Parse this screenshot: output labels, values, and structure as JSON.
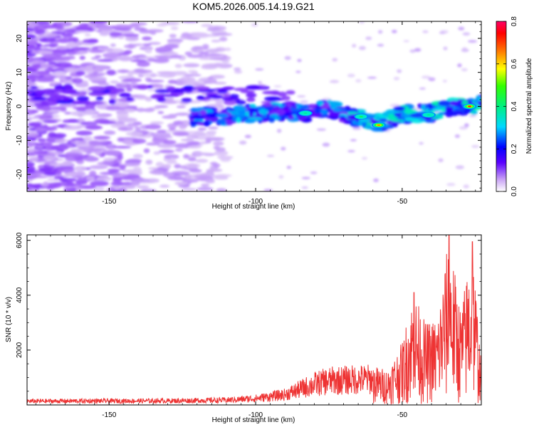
{
  "title": "KOM5.2026.005.14.19.G21",
  "chart_data": [
    {
      "type": "heatmap",
      "title": "KOM5.2026.005.14.19.G21",
      "xlabel": "Height of straight line (km)",
      "ylabel": "Frequency (Hz)",
      "xlim": [
        -178,
        -23
      ],
      "ylim": [
        -25,
        25
      ],
      "xticks": [
        -150,
        -100,
        -50
      ],
      "yticks": [
        -20,
        -10,
        0,
        10,
        20
      ],
      "colorbar": {
        "label": "Normalized spectral amplitude",
        "range": [
          0.0,
          0.8
        ],
        "ticks": [
          "0.0",
          "0.2",
          "0.4",
          "0.6",
          "0.8"
        ]
      },
      "ridge": [
        {
          "x": -122,
          "y": -3
        },
        {
          "x": -110,
          "y": -3
        },
        {
          "x": -100,
          "y": -2
        },
        {
          "x": -90,
          "y": -1.5
        },
        {
          "x": -82,
          "y": -2
        },
        {
          "x": -75,
          "y": -0.5
        },
        {
          "x": -68,
          "y": -2.5
        },
        {
          "x": -62,
          "y": -4
        },
        {
          "x": -57,
          "y": -5
        },
        {
          "x": -52,
          "y": -3
        },
        {
          "x": -47,
          "y": -2
        },
        {
          "x": -40,
          "y": -2
        },
        {
          "x": -33,
          "y": 0
        },
        {
          "x": -27,
          "y": 0
        },
        {
          "x": -23,
          "y": 0.5
        }
      ],
      "peaks": [
        {
          "x": -83,
          "y": -2,
          "amplitude": 0.5
        },
        {
          "x": -64,
          "y": -3,
          "amplitude": 0.55
        },
        {
          "x": -58,
          "y": -5.5,
          "amplitude": 0.75
        },
        {
          "x": -41,
          "y": -2.5,
          "amplitude": 0.5
        },
        {
          "x": -27,
          "y": 0,
          "amplitude": 0.8
        }
      ]
    },
    {
      "type": "line",
      "xlabel": "Height of straight line (km)",
      "ylabel": "SNR (10 * v/v)",
      "xlim": [
        -178,
        -23
      ],
      "ylim": [
        0,
        6200
      ],
      "xticks": [
        -150,
        -100,
        -50
      ],
      "yticks": [
        2000,
        4000,
        6000
      ],
      "color": "#ee3333",
      "envelope": [
        {
          "x": -178,
          "y": 220
        },
        {
          "x": -130,
          "y": 240
        },
        {
          "x": -110,
          "y": 280
        },
        {
          "x": -100,
          "y": 380
        },
        {
          "x": -90,
          "y": 600
        },
        {
          "x": -80,
          "y": 1200
        },
        {
          "x": -75,
          "y": 1400
        },
        {
          "x": -62,
          "y": 1500
        },
        {
          "x": -55,
          "y": 1300
        },
        {
          "x": -50,
          "y": 2300
        },
        {
          "x": -48,
          "y": 3300
        },
        {
          "x": -46,
          "y": 4100
        },
        {
          "x": -42,
          "y": 3000
        },
        {
          "x": -38,
          "y": 3200
        },
        {
          "x": -34,
          "y": 6200
        },
        {
          "x": -30,
          "y": 3500
        },
        {
          "x": -26,
          "y": 6000
        },
        {
          "x": -23,
          "y": 1500
        }
      ],
      "peaks": [
        {
          "x": -46,
          "y": 4100
        },
        {
          "x": -34,
          "y": 6200
        },
        {
          "x": -26,
          "y": 5950
        }
      ]
    }
  ]
}
